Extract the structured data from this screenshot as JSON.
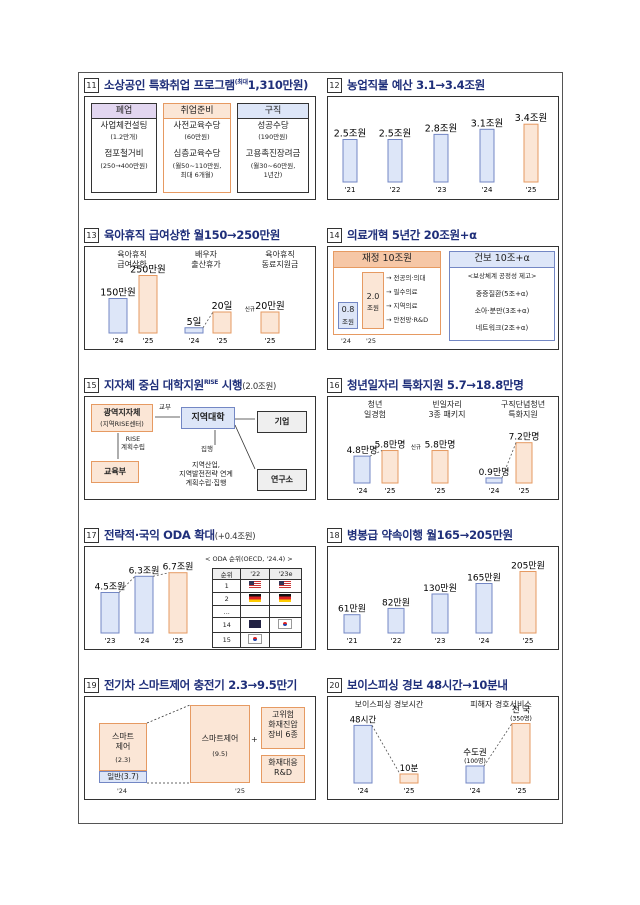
{
  "colors": {
    "blue_fill": "#dde6f8",
    "blue_stroke": "#7387c4",
    "orange_fill": "#fbe6d6",
    "orange_stroke": "#e69a62",
    "purple_fill": "#e2d6f0",
    "title": "#1f2f7a"
  },
  "p11": {
    "num": "11",
    "title": "소상공인 특화취업 프로그램",
    "title_sup": "(최대",
    "title_tail": "1,310만원)",
    "col1": {
      "head": "폐업",
      "l1": "사업체컨설팅",
      "l2": "(1.2만개)",
      "l3": "점포철거비",
      "l4": "(250→400만원)"
    },
    "col2": {
      "head": "취업준비",
      "l1": "사전교육수당",
      "l2": "(60만원)",
      "l3": "심층교육수당",
      "l4": "(월50~110만원,",
      "l5": "최대 6개월)"
    },
    "col3": {
      "head": "구직",
      "l1": "성공수당",
      "l2": "(190만원)",
      "l3": "고용촉진장려금",
      "l4": "(월30~60만원,",
      "l5": "1년간)"
    }
  },
  "p12": {
    "num": "12",
    "title": "농업직불 예산 3.1→3.4조원",
    "chart_data": {
      "type": "bar",
      "categories": [
        "'21",
        "'22",
        "'23",
        "'24",
        "'25"
      ],
      "values": [
        2.5,
        2.5,
        2.8,
        3.1,
        3.4
      ],
      "labels": [
        "2.5조원",
        "2.5조원",
        "2.8조원",
        "3.1조원",
        "3.4조원"
      ],
      "highlight": [
        false,
        false,
        false,
        false,
        true
      ]
    }
  },
  "p13": {
    "num": "13",
    "title": "육아휴직 급여상한 월150→250만원",
    "groups": [
      {
        "title1": "육아휴직",
        "title2": "급여상한"
      },
      {
        "title1": "배우자",
        "title2": "출산휴가"
      },
      {
        "title1": "육아휴직",
        "title2": "동료지원금"
      }
    ],
    "chart_data": {
      "type": "bar",
      "categories": [
        "'24",
        "'25",
        "'24",
        "'25",
        "'25"
      ],
      "values": [
        150,
        250,
        5,
        20,
        20
      ],
      "labels": [
        "150만원",
        "250만원",
        "5일",
        "20일",
        "20만원"
      ],
      "new_tag": "신규"
    }
  },
  "p14": {
    "num": "14",
    "title": "의료개혁 5년간 20조원+α",
    "left": {
      "head": "재정 10조원",
      "base": "0.8",
      "base_unit": "조원",
      "mid": "2.0",
      "mid_unit": "조원",
      "items": [
        "→ 전공의·의대",
        "→ 필수의료",
        "→ 지역의료",
        "→ 안전망·R&D"
      ],
      "x1": "'24",
      "x2": "'25"
    },
    "right": {
      "head": "건보 10조+α",
      "items": [
        "<보상체계 공정성 제고>",
        "중증질환(5조+α)",
        "소아·분만(3조+α)",
        "네트워크(2조+α)"
      ]
    }
  },
  "p15": {
    "num": "15",
    "title": "지자체 중심 대학지원",
    "title_sup": "RISE",
    "title_tail": "시행",
    "title_small": "(2.0조원)",
    "gov": "광역지자체",
    "gov_sub": "(지역RISE센터)",
    "univ": "지역대학",
    "company": "기업",
    "moe": "교육부",
    "inst": "연구소",
    "grant": "교부",
    "rise1": "RISE",
    "rise2": "계획수립",
    "exec": "집행",
    "link1": "지역산업,",
    "link2": "지역발전전략 연계",
    "link3": "계획수립·집행"
  },
  "p16": {
    "num": "16",
    "title": "청년일자리 특화지원 5.7→18.8만명",
    "groups": [
      {
        "title1": "청년",
        "title2": "일경험"
      },
      {
        "title1": "빈일자리",
        "title2": "3종 패키지"
      },
      {
        "title1": "구직단념청년",
        "title2": "특화지원"
      }
    ],
    "chart_data": {
      "type": "bar",
      "categories": [
        "'24",
        "'25",
        "'25",
        "'24",
        "'25"
      ],
      "values": [
        4.8,
        5.8,
        5.8,
        0.9,
        7.2
      ],
      "labels": [
        "4.8만명",
        "5.8만명",
        "5.8만명",
        "0.9만명",
        "7.2만명"
      ],
      "new_tag": "신규"
    }
  },
  "p17": {
    "num": "17",
    "title": "전략적·국익 ODA 확대",
    "title_small": "(+0.4조원)",
    "chart_data": {
      "type": "bar",
      "categories": [
        "'23",
        "'24",
        "'25"
      ],
      "values": [
        4.5,
        6.3,
        6.7
      ],
      "labels": [
        "4.5조원",
        "6.3조원",
        "6.7조원"
      ]
    },
    "table": {
      "caption": "< ODA 순위(OECD, '24.4) >",
      "headers": [
        "순위",
        "'22",
        "'23e"
      ],
      "rows": [
        {
          "rank": "1",
          "a": "us",
          "b": "us"
        },
        {
          "rank": "2",
          "a": "de",
          "b": "de"
        },
        {
          "rank": "...",
          "a": "",
          "b": ""
        },
        {
          "rank": "14",
          "a": "au",
          "b": "kr"
        },
        {
          "rank": "15",
          "a": "kr",
          "b": ""
        }
      ]
    }
  },
  "p18": {
    "num": "18",
    "title": "병봉급 약속이행 월165→205만원",
    "chart_data": {
      "type": "bar",
      "categories": [
        "'21",
        "'22",
        "'23",
        "'24",
        "'25"
      ],
      "values": [
        61,
        82,
        130,
        165,
        205
      ],
      "labels": [
        "61만원",
        "82만원",
        "130만원",
        "165만원",
        "205만원"
      ]
    }
  },
  "p19": {
    "num": "19",
    "title": "전기차 스마트제어 충전기 2.3→9.5만기",
    "a_label1": "스마트",
    "a_label2": "제어",
    "a_val": "(2.3)",
    "a_general": "일반(3.7)",
    "b_label": "스마트제어",
    "b_val": "(9.5)",
    "plus": "+",
    "c1": "고위험",
    "c2": "화재진압",
    "c3": "장비 6종",
    "d1": "화재대응",
    "d2": "R&D",
    "x1": "'24",
    "x2": "'25"
  },
  "p20": {
    "num": "20",
    "title": "보이스피싱 경보 48시간→10분내",
    "groups": [
      {
        "title": "보이스피싱 경보시간"
      },
      {
        "title": "피해자 경호서비스"
      }
    ],
    "chart_data": {
      "type": "bar",
      "categories": [
        "'24",
        "'25",
        "'24",
        "'25"
      ],
      "values": [
        48,
        10,
        100,
        350
      ],
      "labels": [
        "48시간",
        "10분",
        "수도권",
        "전 국"
      ],
      "sublabels": [
        "",
        "",
        "(100명)",
        "(350명)"
      ]
    }
  }
}
